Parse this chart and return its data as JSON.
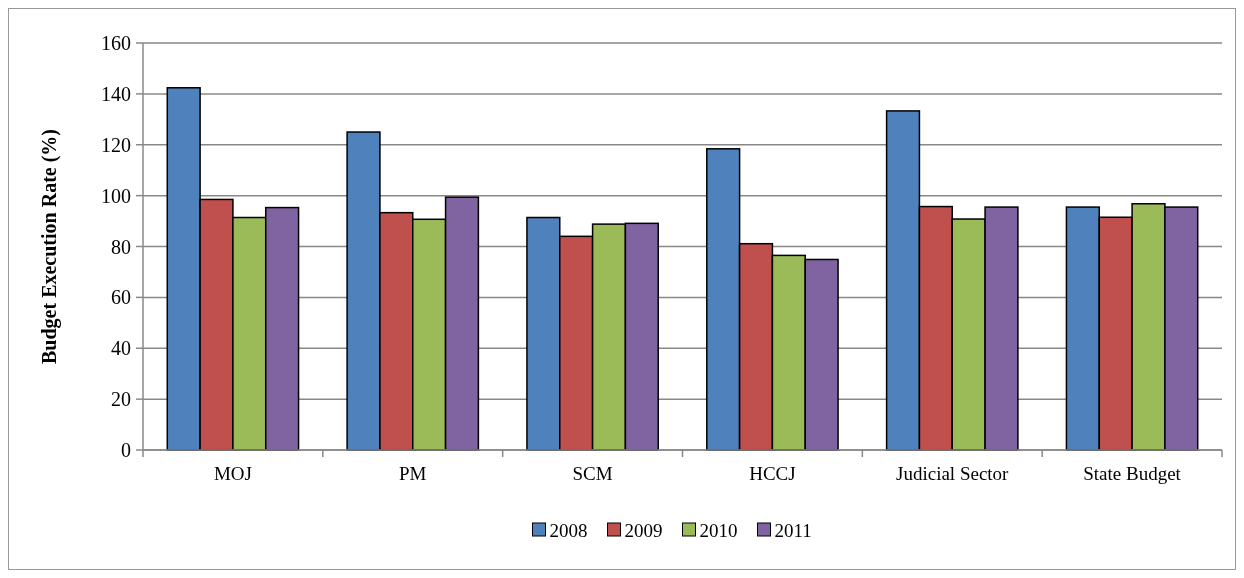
{
  "chart_data": {
    "type": "bar",
    "ylabel": "Budget Execution Rate (%)",
    "categories": [
      "MOJ",
      "PM",
      "SCM",
      "HCCJ",
      "Judicial Sector",
      "State Budget"
    ],
    "series": [
      {
        "name": "2008",
        "color": "#4f81bd",
        "values": [
          142.4,
          125,
          91.4,
          118.4,
          133.3,
          95.5
        ]
      },
      {
        "name": "2009",
        "color": "#c0504d",
        "values": [
          98.5,
          93.3,
          84,
          81.1,
          95.7,
          91.5
        ]
      },
      {
        "name": "2010",
        "color": "#9bbb59",
        "values": [
          91.4,
          90.7,
          88.8,
          76.5,
          90.8,
          96.8
        ]
      },
      {
        "name": "2011",
        "color": "#8064a2",
        "values": [
          95.3,
          99.4,
          89.1,
          74.9,
          95.5,
          95.5
        ]
      }
    ],
    "ylim": [
      0,
      160
    ],
    "yticks": [
      0,
      20,
      40,
      60,
      80,
      100,
      120,
      140,
      160
    ],
    "grid": "y",
    "legend": "bottom"
  }
}
